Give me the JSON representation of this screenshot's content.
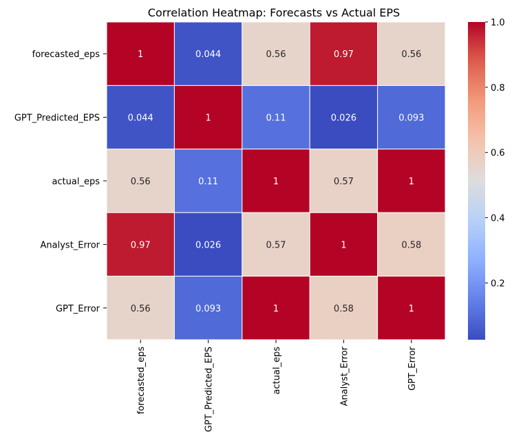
{
  "chart_data": {
    "type": "heatmap",
    "title": "Correlation Heatmap: Forecasts vs Actual EPS",
    "xlabel": "",
    "ylabel": "",
    "row_labels": [
      "forecasted_eps",
      "GPT_Predicted_EPS",
      "actual_eps",
      "Analyst_Error",
      "GPT_Error"
    ],
    "col_labels": [
      "forecasted_eps",
      "GPT_Predicted_EPS",
      "actual_eps",
      "Analyst_Error",
      "GPT_Error"
    ],
    "values": [
      [
        1,
        0.044,
        0.56,
        0.97,
        0.56
      ],
      [
        0.044,
        1,
        0.11,
        0.026,
        0.093
      ],
      [
        0.56,
        0.11,
        1,
        0.57,
        1
      ],
      [
        0.97,
        0.026,
        0.57,
        1,
        0.58
      ],
      [
        0.56,
        0.093,
        1,
        0.58,
        1
      ]
    ],
    "value_labels": [
      [
        "1",
        "0.044",
        "0.56",
        "0.97",
        "0.56"
      ],
      [
        "0.044",
        "1",
        "0.11",
        "0.026",
        "0.093"
      ],
      [
        "0.56",
        "0.11",
        "1",
        "0.57",
        "1"
      ],
      [
        "0.97",
        "0.026",
        "0.57",
        "1",
        "0.58"
      ],
      [
        "0.56",
        "0.093",
        "1",
        "0.58",
        "1"
      ]
    ],
    "colormap": "coolwarm",
    "colorbar": {
      "range": [
        0.026,
        1
      ],
      "ticks": [
        0.2,
        0.4,
        0.6,
        0.8,
        1.0
      ],
      "tick_labels": [
        "0.2",
        "0.4",
        "0.6",
        "0.8",
        "1.0"
      ]
    },
    "grid": false,
    "legend": "colorbar-right",
    "cell_border_color": "#ffffff"
  }
}
